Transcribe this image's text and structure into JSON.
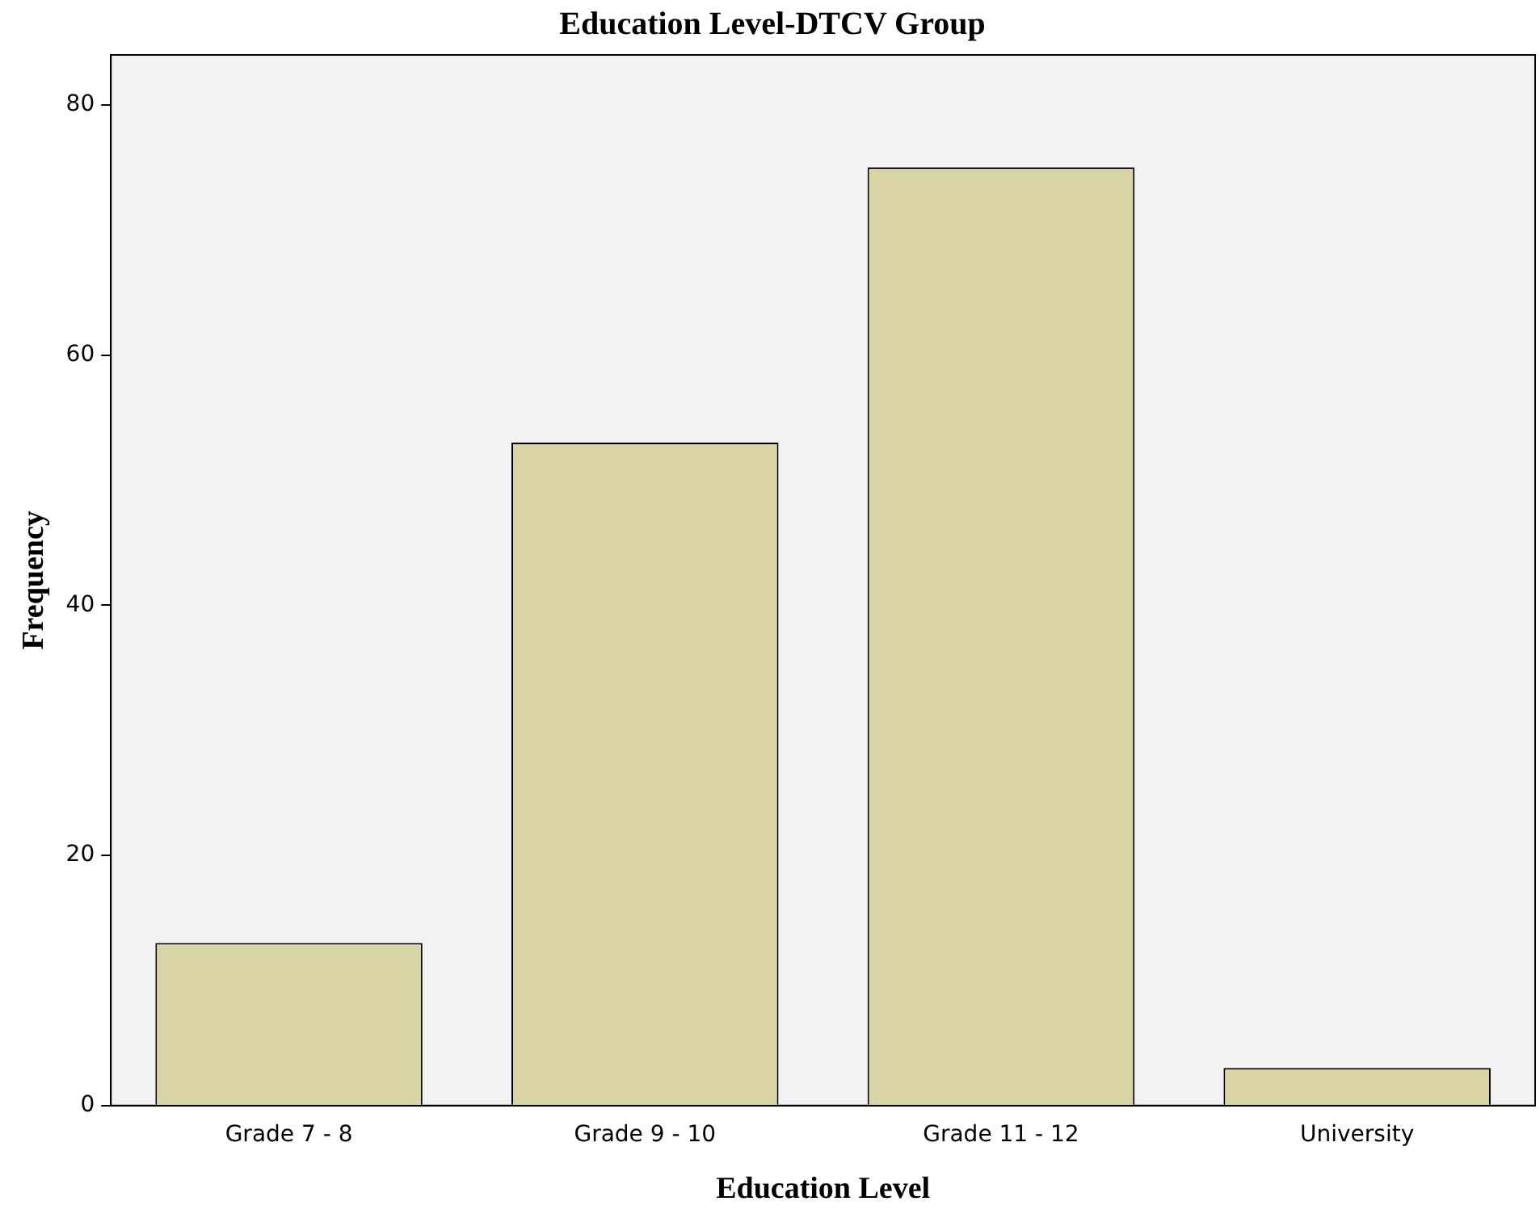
{
  "chart_data": {
    "type": "bar",
    "title": "Education Level-DTCV Group",
    "xlabel": "Education Level",
    "ylabel": "Frequency",
    "categories": [
      "Grade 7 - 8",
      "Grade 9 - 10",
      "Grade 11 - 12",
      "University"
    ],
    "values": [
      13,
      53,
      75,
      3
    ],
    "color": "#d9d4a6",
    "ylim": [
      0,
      84
    ],
    "yticks": [
      0,
      20,
      40,
      60,
      80
    ],
    "grid": false,
    "legend": false
  }
}
